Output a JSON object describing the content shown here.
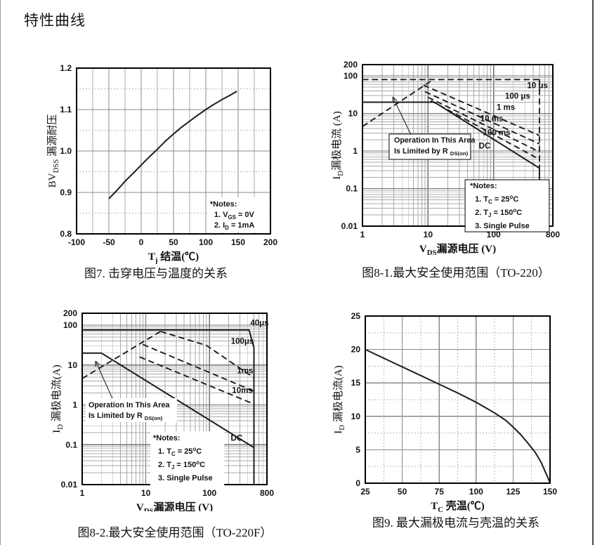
{
  "page": {
    "title": "特性曲线"
  },
  "colors": {
    "ink": "#1c1c1c",
    "border": "#000000",
    "grid_minor": "#a9a9a9",
    "grid_major": "#8a8a8a",
    "grid_decade": "#6f6f6f"
  },
  "chart_data": [
    {
      "id": "fig7",
      "type": "line",
      "caption": "图7. 击穿电压与温度的关系",
      "xlabel": [
        {
          "t": "T"
        },
        {
          "t": "j",
          "sub": true
        },
        {
          "t": " 结温(℃)"
        }
      ],
      "ylabel": [
        {
          "t": "BV"
        },
        {
          "t": "DSS",
          "sub": true
        },
        {
          "t": " 漏源耐压"
        }
      ],
      "xlog": false,
      "ylog": false,
      "xlim": [
        -100,
        200
      ],
      "ylim": [
        0.8,
        1.2
      ],
      "xticks": [
        {
          "v": -100,
          "l": "-100"
        },
        {
          "v": -50,
          "l": "-50"
        },
        {
          "v": 0,
          "l": "0"
        },
        {
          "v": 50,
          "l": "50"
        },
        {
          "v": 100,
          "l": "100"
        },
        {
          "v": 150,
          "l": "150"
        },
        {
          "v": 200,
          "l": "200"
        }
      ],
      "yticks": [
        {
          "v": 1.2,
          "l": "1.2"
        },
        {
          "v": 1.1,
          "l": "1.1"
        },
        {
          "v": 1.0,
          "l": "1.0"
        },
        {
          "v": 0.9,
          "l": "0.9"
        },
        {
          "v": 0.8,
          "l": "0.8"
        }
      ],
      "grid": {
        "log": false,
        "x_major": 50,
        "x_minor": 25,
        "x_minor_dotted": false,
        "y_major": 0.1,
        "y_minor": 0.05,
        "y_minor_dotted": true
      },
      "series": [
        {
          "name": "bvdss-vs-tj",
          "style": "solid",
          "points": [
            [
              -50,
              0.885
            ],
            [
              -37,
              0.906
            ],
            [
              -25,
              0.927
            ],
            [
              -12,
              0.947
            ],
            [
              0,
              0.966
            ],
            [
              12,
              0.985
            ],
            [
              25,
              1.004
            ],
            [
              37,
              1.023
            ],
            [
              50,
              1.041
            ],
            [
              62,
              1.057
            ],
            [
              75,
              1.072
            ],
            [
              87,
              1.086
            ],
            [
              100,
              1.1
            ],
            [
              112,
              1.112
            ],
            [
              125,
              1.124
            ],
            [
              137,
              1.134
            ],
            [
              148,
              1.144
            ]
          ]
        }
      ],
      "notes": {
        "fx": 0.688,
        "fy": 0.788,
        "fw": 0.32,
        "fh": 0.21,
        "box": false,
        "line_h": 15,
        "size": 11,
        "lines": [
          {
            "ind": 0,
            "seg": [
              {
                "t": "*Notes:"
              }
            ]
          },
          {
            "ind": 6,
            "seg": [
              {
                "t": "1. V"
              },
              {
                "t": "GS",
                "sub": true
              },
              {
                "t": " = 0V"
              }
            ]
          },
          {
            "ind": 6,
            "seg": [
              {
                "t": "2. I"
              },
              {
                "t": "D",
                "sub": true
              },
              {
                "t": " = 1mA"
              }
            ]
          }
        ]
      }
    },
    {
      "id": "fig8-1",
      "type": "line",
      "caption": "图8-1.最大安全使用范围（TO-220）",
      "xlabel": [
        {
          "t": "V"
        },
        {
          "t": "DS",
          "sub": true
        },
        {
          "t": "漏源电压 (V)"
        }
      ],
      "ylabel": [
        {
          "t": "I"
        },
        {
          "t": "D",
          "sub": true
        },
        {
          "t": "漏极电流 (A)"
        }
      ],
      "xlog": true,
      "ylog": true,
      "xlim": [
        1,
        800
      ],
      "ylim": [
        0.01,
        200
      ],
      "xticks": [
        {
          "v": 1,
          "l": "1"
        },
        {
          "v": 10,
          "l": "10"
        },
        {
          "v": 100,
          "l": "100"
        },
        {
          "v": 800,
          "l": "800"
        }
      ],
      "yticks": [
        {
          "v": 200,
          "l": "200"
        },
        {
          "v": 100,
          "l": "100"
        },
        {
          "v": 10,
          "l": "10"
        },
        {
          "v": 1,
          "l": "1"
        },
        {
          "v": 0.1,
          "l": "0.1"
        },
        {
          "v": 0.01,
          "l": "0.01"
        }
      ],
      "grid": {
        "log": true
      },
      "series": [
        {
          "name": "limit-10us",
          "style": "dashed",
          "points": [
            [
              1,
              80
            ],
            [
              500,
              80
            ]
          ]
        },
        {
          "name": "voltage-limit-dashed",
          "style": "dashed",
          "points": [
            [
              500,
              80
            ],
            [
              500,
              0.35
            ]
          ]
        },
        {
          "name": "rdson-limit",
          "style": "dashed",
          "points": [
            [
              1,
              4.5
            ],
            [
              12,
              80
            ]
          ]
        },
        {
          "name": "limit-100us",
          "style": "dashed",
          "points": [
            [
              8.5,
              57
            ],
            [
              500,
              2.6
            ]
          ]
        },
        {
          "name": "limit-1ms",
          "style": "dashed",
          "points": [
            [
              9,
              38
            ],
            [
              500,
              1.55
            ]
          ]
        },
        {
          "name": "limit-10ms",
          "style": "dashed",
          "points": [
            [
              10,
              27
            ],
            [
              500,
              0.95
            ]
          ]
        },
        {
          "name": "limit-100ms",
          "style": "dashed",
          "points": [
            [
              11,
              22
            ],
            [
              500,
              0.6
            ]
          ]
        },
        {
          "name": "limit-dc",
          "style": "solid",
          "points": [
            [
              1,
              20
            ],
            [
              12.5,
              20
            ],
            [
              500,
              0.35
            ]
          ]
        },
        {
          "name": "voltage-limit-solid",
          "style": "solid",
          "points": [
            [
              500,
              0.35
            ],
            [
              500,
              0.0105
            ]
          ]
        }
      ],
      "annotations": [
        {
          "text": "10 μs",
          "fx": 0.919,
          "fy": 0.128
        },
        {
          "text": "100 μs",
          "fx": 0.815,
          "fy": 0.193
        },
        {
          "text": "1 ms",
          "fx": 0.753,
          "fy": 0.263
        },
        {
          "text": "10 ms",
          "fx": 0.679,
          "fy": 0.332
        },
        {
          "text": "100 ms",
          "fx": 0.705,
          "fy": 0.419
        },
        {
          "text": "DC",
          "fx": 0.642,
          "fy": 0.502
        }
      ],
      "callout": {
        "fx": 0.14,
        "fy": 0.43,
        "fw": 0.428,
        "fh": 0.157,
        "box": true,
        "line_h": 15.5,
        "size": 10.8,
        "lines": [
          {
            "ind": 0,
            "seg": [
              {
                "t": "Operation In This Area"
              }
            ]
          },
          {
            "ind": 0,
            "seg": [
              {
                "t": "Is Limited by R "
              },
              {
                "t": "DS(on)",
                "sub": true
              }
            ]
          }
        ]
      },
      "arrow": {
        "from": [
          0.255,
          0.435
        ],
        "to": [
          0.159,
          0.2
        ]
      },
      "notes": {
        "fx": 0.539,
        "fy": 0.713,
        "fw": 0.442,
        "fh": 0.322,
        "box": true,
        "line_h": 19,
        "size": 11,
        "lines": [
          {
            "ind": 0,
            "seg": [
              {
                "t": "*Notes:"
              }
            ]
          },
          {
            "ind": 7,
            "seg": [
              {
                "t": "1. T"
              },
              {
                "t": "C",
                "sub": true
              },
              {
                "t": " = 25"
              },
              {
                "t": "o",
                "sup": true
              },
              {
                "t": "C"
              }
            ]
          },
          {
            "ind": 7,
            "seg": [
              {
                "t": "2. T"
              },
              {
                "t": "J",
                "sub": true
              },
              {
                "t": " = 150"
              },
              {
                "t": "o",
                "sup": true
              },
              {
                "t": "C"
              }
            ]
          },
          {
            "ind": 7,
            "seg": [
              {
                "t": "3. Single Pulse"
              }
            ]
          }
        ]
      }
    },
    {
      "id": "fig8-2",
      "type": "line",
      "caption": "图8-2.最大安全使用范围（TO-220F）",
      "xlabel": [
        {
          "t": "V"
        },
        {
          "t": "DS",
          "sub": true
        },
        {
          "t": "漏源电压 (V)"
        }
      ],
      "ylabel": [
        {
          "t": "I"
        },
        {
          "t": "D",
          "sub": true
        },
        {
          "t": " 漏极电流(A)"
        }
      ],
      "xlog": true,
      "ylog": true,
      "xlim": [
        1,
        800
      ],
      "ylim": [
        0.01,
        200
      ],
      "xticks": [
        {
          "v": 1,
          "l": "1"
        },
        {
          "v": 10,
          "l": "10"
        },
        {
          "v": 100,
          "l": "100"
        },
        {
          "v": 800,
          "l": "800"
        }
      ],
      "yticks": [
        {
          "v": 200,
          "l": "200"
        },
        {
          "v": 100,
          "l": "100"
        },
        {
          "v": 10,
          "l": "10"
        },
        {
          "v": 1,
          "l": "1"
        },
        {
          "v": 0.1,
          "l": "0.1"
        },
        {
          "v": 0.01,
          "l": "0.01"
        }
      ],
      "grid": {
        "log": true
      },
      "series": [
        {
          "name": "limit-40us",
          "style": "solid",
          "points": [
            [
              1,
              76
            ],
            [
              420,
              76
            ],
            [
              500,
              27
            ],
            [
              500,
              0.0105
            ]
          ]
        },
        {
          "name": "rdson-limit",
          "style": "dashed",
          "points": [
            [
              1,
              4.6
            ],
            [
              17,
              70
            ]
          ]
        },
        {
          "name": "limit-100us",
          "style": "dashed",
          "points": [
            [
              17,
              70
            ],
            [
              90,
              31
            ],
            [
              500,
              4.8
            ]
          ]
        },
        {
          "name": "limit-1ms",
          "style": "dashed",
          "points": [
            [
              9,
              33
            ],
            [
              500,
              2.2
            ]
          ]
        },
        {
          "name": "limit-10ms",
          "style": "dashed",
          "points": [
            [
              8,
              16
            ],
            [
              500,
              1.05
            ]
          ]
        },
        {
          "name": "limit-dc",
          "style": "solid",
          "points": [
            [
              1,
              20
            ],
            [
              2,
              20
            ],
            [
              500,
              0.085
            ]
          ]
        }
      ],
      "annotations": [
        {
          "text": "40μs",
          "fx": 0.96,
          "fy": 0.055
        },
        {
          "text": "100μs",
          "fx": 0.867,
          "fy": 0.162
        },
        {
          "text": "1ms",
          "fx": 0.882,
          "fy": 0.334
        },
        {
          "text": "10ms",
          "fx": 0.867,
          "fy": 0.449
        },
        {
          "text": "DC",
          "fx": 0.836,
          "fy": 0.727
        }
      ],
      "callout": {
        "fx": 0.034,
        "fy": 0.504,
        "fw": 0.494,
        "fh": 0.139,
        "box": false,
        "line_h": 15,
        "size": 10.8,
        "lines": [
          {
            "ind": 0,
            "seg": [
              {
                "t": "Operation In This Area"
              }
            ]
          },
          {
            "ind": 0,
            "seg": [
              {
                "t": "Is Limited by R "
              },
              {
                "t": "DS(on)",
                "sub": true
              }
            ]
          }
        ]
      },
      "arrow": {
        "from": [
          0.163,
          0.496
        ],
        "to": [
          0.072,
          0.279
        ]
      },
      "notes": {
        "fx": 0.384,
        "fy": 0.697,
        "fw": 0.4,
        "fh": 0.33,
        "box": false,
        "line_h": 19,
        "size": 11,
        "lines": [
          {
            "ind": 0,
            "seg": [
              {
                "t": "*Notes:"
              }
            ]
          },
          {
            "ind": 7,
            "seg": [
              {
                "t": "1. T"
              },
              {
                "t": "C",
                "sub": true
              },
              {
                "t": " = 25"
              },
              {
                "t": "o",
                "sup": true
              },
              {
                "t": "C"
              }
            ]
          },
          {
            "ind": 7,
            "seg": [
              {
                "t": "2. T"
              },
              {
                "t": "J",
                "sub": true
              },
              {
                "t": " = 150"
              },
              {
                "t": "o",
                "sup": true
              },
              {
                "t": "C"
              }
            ]
          },
          {
            "ind": 7,
            "seg": [
              {
                "t": "3. Single Pulse"
              }
            ]
          }
        ]
      }
    },
    {
      "id": "fig9",
      "type": "line",
      "caption": "图9. 最大漏极电流与壳温的关系",
      "xlabel": [
        {
          "t": "T"
        },
        {
          "t": "C",
          "sub": true
        },
        {
          "t": " 壳温(℃)"
        }
      ],
      "ylabel": [
        {
          "t": "I"
        },
        {
          "t": "D",
          "sub": true
        },
        {
          "t": " 漏极电流(A)"
        }
      ],
      "xlog": false,
      "ylog": false,
      "xlim": [
        25,
        150
      ],
      "ylim": [
        0,
        25
      ],
      "xticks": [
        {
          "v": 25,
          "l": "25"
        },
        {
          "v": 50,
          "l": "50"
        },
        {
          "v": 75,
          "l": "75"
        },
        {
          "v": 100,
          "l": "100"
        },
        {
          "v": 125,
          "l": "125"
        },
        {
          "v": 150,
          "l": "150"
        }
      ],
      "yticks": [
        {
          "v": 25,
          "l": "25"
        },
        {
          "v": 20,
          "l": "20"
        },
        {
          "v": 15,
          "l": "15"
        },
        {
          "v": 10,
          "l": "10"
        },
        {
          "v": 5,
          "l": "5"
        },
        {
          "v": 0,
          "l": "0"
        }
      ],
      "grid": {
        "log": false,
        "x_major": 25,
        "x_minor": 12.5,
        "x_minor_dotted": true,
        "y_major": 5,
        "y_minor": 2.5,
        "y_minor_dotted": true
      },
      "series": [
        {
          "name": "id-vs-tc",
          "style": "solid",
          "points": [
            [
              25,
              20
            ],
            [
              37.5,
              18.7
            ],
            [
              50,
              17.4
            ],
            [
              62.5,
              16.1
            ],
            [
              75,
              14.8
            ],
            [
              87.5,
              13.5
            ],
            [
              100,
              12.1
            ],
            [
              112.5,
              10.5
            ],
            [
              120,
              9.4
            ],
            [
              125,
              8.4
            ],
            [
              130,
              7.3
            ],
            [
              135,
              6.0
            ],
            [
              140,
              4.6
            ],
            [
              144,
              3.1
            ],
            [
              147,
              1.6
            ],
            [
              149,
              0.6
            ],
            [
              150,
              0
            ]
          ]
        }
      ]
    }
  ]
}
